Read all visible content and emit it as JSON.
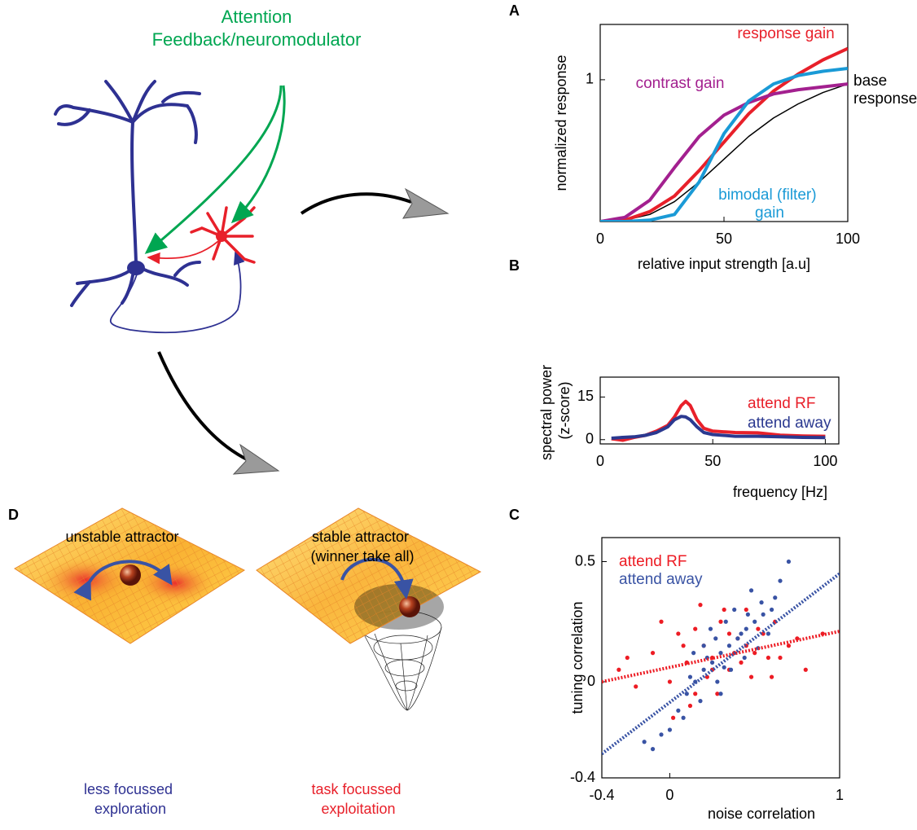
{
  "figure": {
    "attention": "Attention",
    "feedback": "Feedback/neuromodulator",
    "panel_labels": [
      "A",
      "B",
      "C",
      "D"
    ]
  },
  "chart_data": [
    {
      "type": "line",
      "x_label": "relative input strength [a.u]",
      "y_label": "normalized response",
      "x": [
        0,
        10,
        20,
        30,
        40,
        50,
        60,
        70,
        80,
        90,
        100
      ],
      "xlim": [
        0,
        100
      ],
      "ylim": [
        0,
        1.39
      ],
      "xticks": [
        0,
        50,
        100
      ],
      "yticks": [
        1
      ],
      "series": [
        {
          "name": "base response",
          "color": "#000000",
          "values": [
            0,
            0.01,
            0.05,
            0.14,
            0.28,
            0.44,
            0.6,
            0.73,
            0.83,
            0.91,
            0.97
          ]
        },
        {
          "name": "response gain",
          "color": "#e8202a",
          "values": [
            0,
            0.01,
            0.07,
            0.18,
            0.36,
            0.56,
            0.76,
            0.92,
            1.04,
            1.14,
            1.22
          ]
        },
        {
          "name": "contrast gain",
          "color": "#a3208f",
          "values": [
            0,
            0.03,
            0.15,
            0.38,
            0.6,
            0.75,
            0.84,
            0.9,
            0.93,
            0.95,
            0.97
          ]
        },
        {
          "name": "bimodal (filter) gain",
          "color": "#1a9ad6",
          "values": [
            0,
            0,
            0.01,
            0.05,
            0.28,
            0.62,
            0.85,
            0.97,
            1.03,
            1.06,
            1.08
          ]
        }
      ]
    },
    {
      "type": "line",
      "x_label": "frequency [Hz]",
      "y_label": "spectral power (z-score)",
      "x": [
        5,
        10,
        15,
        20,
        25,
        30,
        33,
        36,
        38,
        40,
        43,
        46,
        50,
        60,
        70,
        80,
        90,
        100
      ],
      "xlim": [
        0,
        106
      ],
      "ylim": [
        -1.5,
        22
      ],
      "xticks": [
        0,
        50,
        100
      ],
      "yticks": [
        0,
        15
      ],
      "series": [
        {
          "name": "attend RF",
          "color": "#e8202a",
          "values": [
            0.3,
            -0.2,
            0.8,
            1.5,
            3,
            5,
            8,
            12,
            13.5,
            12,
            7,
            4,
            3,
            2.5,
            2.4,
            1.6,
            1.3,
            1.2
          ]
        },
        {
          "name": "attend away",
          "color": "#2b3990",
          "values": [
            0.5,
            0.8,
            1,
            1.5,
            2.5,
            4.5,
            7,
            8.2,
            8,
            7,
            4.5,
            2.5,
            1.8,
            1.2,
            1.2,
            1,
            0.8,
            0.7
          ]
        }
      ]
    },
    {
      "type": "scatter",
      "x_label": "noise correlation",
      "y_label": "tuning correlation",
      "xlim": [
        -0.4,
        1
      ],
      "ylim": [
        -0.4,
        0.6
      ],
      "xticks": [
        -0.4,
        0,
        1
      ],
      "yticks": [
        -0.4,
        0,
        0.5
      ],
      "series": [
        {
          "name": "attend RF",
          "color": "#ed1c24",
          "x": [
            -0.3,
            -0.2,
            -0.1,
            0.0,
            0.05,
            0.1,
            0.15,
            0.2,
            0.25,
            0.3,
            0.35,
            0.4,
            0.45,
            0.5,
            0.55,
            0.6,
            0.65,
            0.7,
            0.8,
            0.9,
            -0.25,
            -0.05,
            0.12,
            0.22,
            0.32,
            0.42,
            0.52,
            0.62,
            0.75,
            0.28,
            0.38,
            0.18,
            0.08,
            0.48,
            0.58,
            0.02,
            0.35,
            0.45,
            0.25,
            0.15
          ],
          "values": [
            0.05,
            -0.02,
            0.12,
            0.0,
            0.2,
            0.08,
            -0.05,
            0.15,
            0.1,
            0.25,
            0.05,
            0.18,
            0.3,
            0.12,
            0.2,
            0.02,
            0.1,
            0.15,
            0.05,
            0.2,
            0.1,
            0.25,
            -0.1,
            0.02,
            0.3,
            0.08,
            0.22,
            0.25,
            0.18,
            -0.05,
            0.12,
            0.32,
            0.15,
            0.02,
            0.1,
            -0.15,
            0.2,
            0.15,
            0.05,
            0.22
          ],
          "fit_x": [
            -0.4,
            1
          ],
          "fit_values": [
            0.0,
            0.21
          ]
        },
        {
          "name": "attend away",
          "color": "#3953a4",
          "x": [
            0.05,
            0.1,
            0.15,
            0.2,
            0.25,
            0.3,
            0.35,
            0.4,
            0.45,
            0.5,
            0.55,
            0.6,
            0.0,
            -0.1,
            -0.05,
            0.12,
            0.22,
            0.32,
            0.42,
            0.52,
            0.62,
            0.28,
            0.38,
            0.18,
            0.08,
            0.48,
            0.58,
            0.33,
            0.27,
            0.44,
            -0.15,
            0.65,
            0.7,
            0.36,
            0.24,
            0.14,
            0.54,
            0.46,
            0.3,
            0.2
          ],
          "values": [
            -0.12,
            -0.05,
            0.0,
            0.05,
            0.08,
            0.12,
            0.15,
            0.18,
            0.22,
            0.25,
            0.28,
            0.3,
            -0.2,
            -0.28,
            -0.22,
            0.02,
            0.1,
            0.06,
            0.2,
            0.14,
            0.35,
            0.0,
            0.3,
            -0.08,
            -0.15,
            0.38,
            0.2,
            0.25,
            0.18,
            0.1,
            -0.25,
            0.42,
            0.5,
            0.05,
            0.22,
            0.12,
            0.33,
            0.28,
            -0.05,
            0.15
          ],
          "fit_x": [
            -0.4,
            1
          ],
          "fit_values": [
            -0.3,
            0.45
          ]
        }
      ]
    }
  ],
  "panel_d": {
    "left_title": "unstable attractor",
    "right_title": "stable attractor (winner take all)",
    "left_caption": "less focussed exploration",
    "right_caption": "task focussed exploitation"
  }
}
